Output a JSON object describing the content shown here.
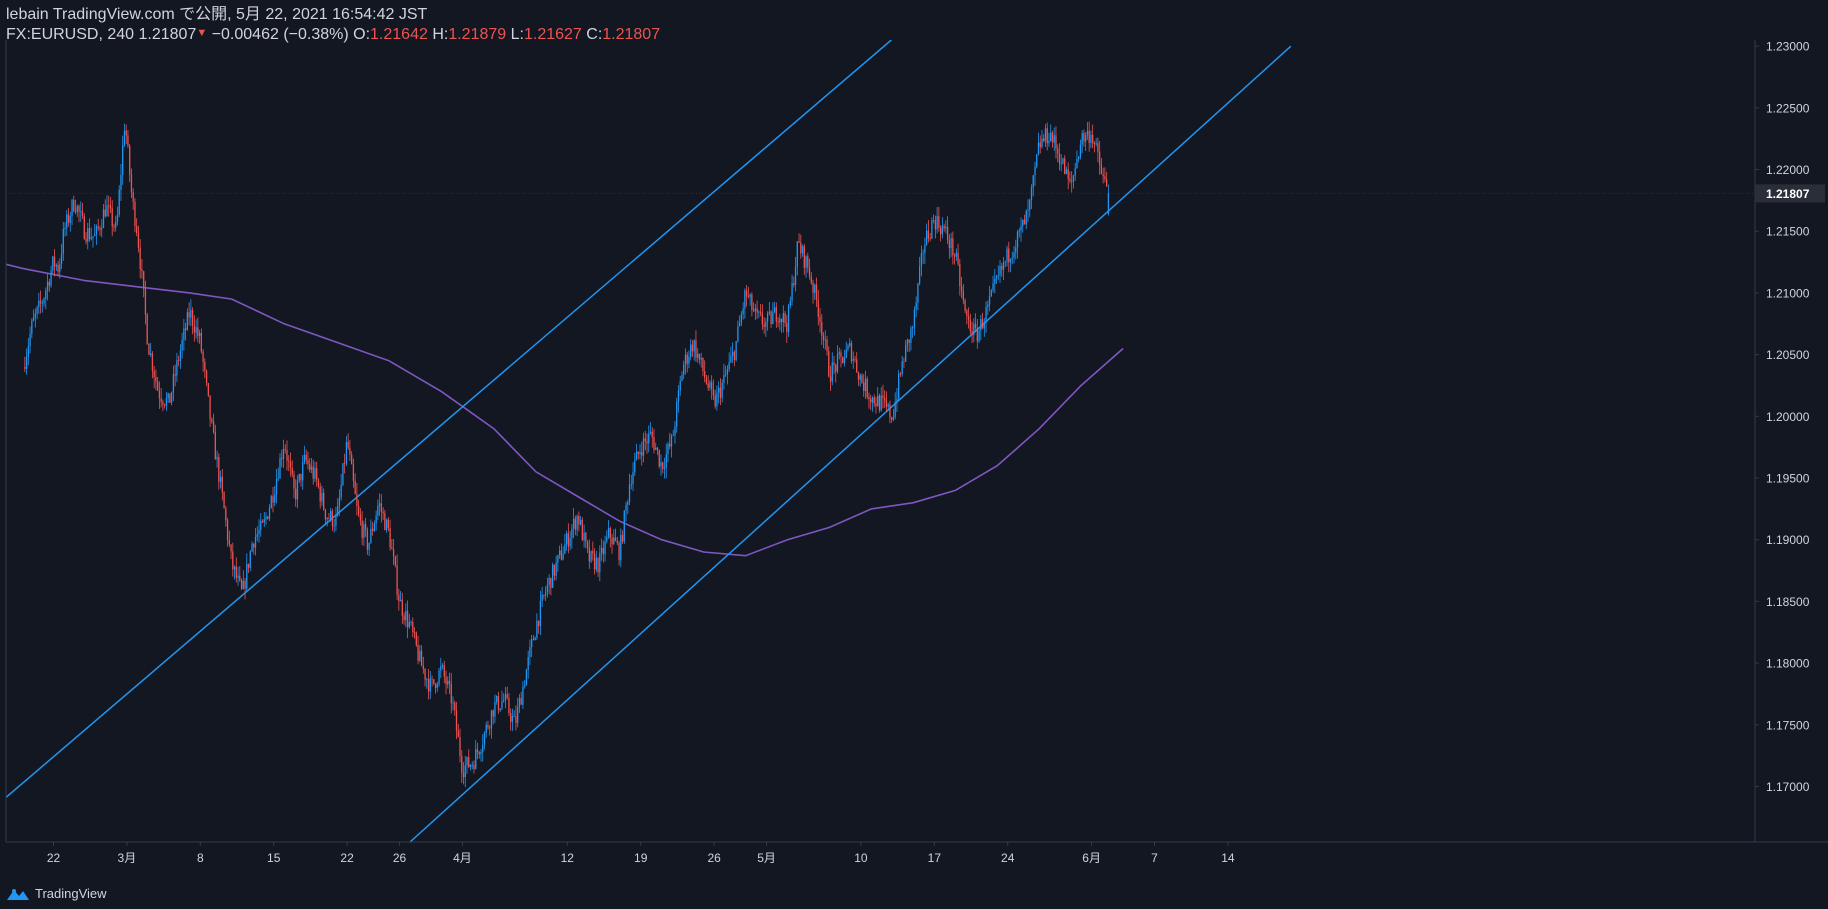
{
  "header": {
    "line1": "lebain TradingView.com で公開, 5月 22, 2021 16:54:42 JST",
    "symbol": "FX:EURUSD, 240",
    "last": "1.21807",
    "change": "−0.00462 (−0.38%)",
    "o_label": "O:",
    "o_val": "1.21642",
    "h_label": "H:",
    "h_val": "1.21879",
    "l_label": "L:",
    "l_val": "1.21627",
    "c_label": "C:",
    "c_val": "1.21807"
  },
  "footer": {
    "brand": "TradingView"
  },
  "colors": {
    "background": "#131722",
    "up": "#2196f3",
    "down": "#ef5350",
    "channel": "#2196f3",
    "ma": "#7e57c2",
    "axis": "#363a45",
    "text": "#d1d4dc"
  },
  "chart_data": {
    "type": "candlestick",
    "symbol": "FX:EURUSD",
    "timeframe": "240",
    "ylim": [
      1.1655,
      1.2305
    ],
    "y_ticks": [
      "1.23000",
      "1.22500",
      "1.22000",
      "1.21500",
      "1.21000",
      "1.20500",
      "1.20000",
      "1.19500",
      "1.19000",
      "1.18500",
      "1.18000",
      "1.17500",
      "1.17000"
    ],
    "x_ticks": [
      {
        "label": "22",
        "day": 0
      },
      {
        "label": "3月",
        "day": 7
      },
      {
        "label": "8",
        "day": 14
      },
      {
        "label": "15",
        "day": 21
      },
      {
        "label": "22",
        "day": 28
      },
      {
        "label": "26",
        "day": 33
      },
      {
        "label": "4月",
        "day": 39
      },
      {
        "label": "12",
        "day": 49
      },
      {
        "label": "19",
        "day": 56
      },
      {
        "label": "26",
        "day": 63
      },
      {
        "label": "5月",
        "day": 68
      },
      {
        "label": "10",
        "day": 77
      },
      {
        "label": "17",
        "day": 84
      },
      {
        "label": "24",
        "day": 91
      },
      {
        "label": "6月",
        "day": 99
      },
      {
        "label": "7",
        "day": 105
      },
      {
        "label": "14",
        "day": 112
      }
    ],
    "last_price_label": "1.21807",
    "candles": {
      "close_path": [
        [
          -2.9,
          1.204
        ],
        [
          -2.0,
          1.2075
        ],
        [
          -1.0,
          1.2095
        ],
        [
          0.0,
          1.2125
        ],
        [
          0.5,
          1.212
        ],
        [
          1.0,
          1.215
        ],
        [
          2.0,
          1.2175
        ],
        [
          3.0,
          1.215
        ],
        [
          4.0,
          1.2145
        ],
        [
          5.0,
          1.217
        ],
        [
          6.0,
          1.215
        ],
        [
          6.8,
          1.224
        ],
        [
          7.5,
          1.2175
        ],
        [
          8.0,
          1.215
        ],
        [
          9.0,
          1.206
        ],
        [
          10.0,
          1.202
        ],
        [
          11.0,
          1.201
        ],
        [
          12.0,
          1.205
        ],
        [
          13.0,
          1.2085
        ],
        [
          14.0,
          1.206
        ],
        [
          15.0,
          1.1995
        ],
        [
          16.0,
          1.194
        ],
        [
          17.0,
          1.188
        ],
        [
          18.0,
          1.1855
        ],
        [
          19.0,
          1.19
        ],
        [
          20.0,
          1.191
        ],
        [
          21.0,
          1.194
        ],
        [
          22.0,
          1.198
        ],
        [
          23.0,
          1.1935
        ],
        [
          24.0,
          1.1965
        ],
        [
          25.0,
          1.195
        ],
        [
          26.0,
          1.192
        ],
        [
          27.0,
          1.1915
        ],
        [
          28.0,
          1.198
        ],
        [
          29.0,
          1.192
        ],
        [
          30.0,
          1.1895
        ],
        [
          31.0,
          1.193
        ],
        [
          32.0,
          1.1905
        ],
        [
          33.0,
          1.185
        ],
        [
          34.0,
          1.183
        ],
        [
          35.0,
          1.18
        ],
        [
          36.0,
          1.178
        ],
        [
          37.0,
          1.1795
        ],
        [
          38.0,
          1.177
        ],
        [
          39.0,
          1.1715
        ],
        [
          40.0,
          1.172
        ],
        [
          41.0,
          1.174
        ],
        [
          42.0,
          1.1765
        ],
        [
          43.0,
          1.177
        ],
        [
          44.0,
          1.175
        ],
        [
          45.0,
          1.179
        ],
        [
          46.0,
          1.183
        ],
        [
          47.0,
          1.186
        ],
        [
          48.0,
          1.188
        ],
        [
          49.0,
          1.19
        ],
        [
          50.0,
          1.192
        ],
        [
          51.0,
          1.1885
        ],
        [
          52.0,
          1.188
        ],
        [
          53.0,
          1.1905
        ],
        [
          54.0,
          1.189
        ],
        [
          55.0,
          1.195
        ],
        [
          56.0,
          1.1975
        ],
        [
          57.0,
          1.1985
        ],
        [
          58.0,
          1.196
        ],
        [
          59.0,
          1.198
        ],
        [
          60.0,
          1.204
        ],
        [
          61.0,
          1.206
        ],
        [
          62.0,
          1.2035
        ],
        [
          63.0,
          1.201
        ],
        [
          64.0,
          1.203
        ],
        [
          65.0,
          1.2055
        ],
        [
          66.0,
          1.21
        ],
        [
          67.0,
          1.208
        ],
        [
          68.0,
          1.2075
        ],
        [
          69.0,
          1.2085
        ],
        [
          70.0,
          1.2075
        ],
        [
          71.0,
          1.214
        ],
        [
          72.0,
          1.212
        ],
        [
          73.0,
          1.2085
        ],
        [
          74.0,
          1.2035
        ],
        [
          75.0,
          1.2045
        ],
        [
          76.0,
          1.2055
        ],
        [
          77.0,
          1.203
        ],
        [
          78.0,
          1.2015
        ],
        [
          79.0,
          1.201
        ],
        [
          80.0,
          1.2
        ],
        [
          81.0,
          1.2045
        ],
        [
          82.0,
          1.2075
        ],
        [
          83.0,
          1.214
        ],
        [
          84.0,
          1.216
        ],
        [
          85.0,
          1.215
        ],
        [
          86.0,
          1.213
        ],
        [
          87.0,
          1.208
        ],
        [
          88.0,
          1.2065
        ],
        [
          89.0,
          1.2085
        ],
        [
          90.0,
          1.211
        ],
        [
          91.0,
          1.213
        ],
        [
          92.0,
          1.2145
        ],
        [
          93.0,
          1.2165
        ],
        [
          94.0,
          1.222
        ],
        [
          95.0,
          1.223
        ],
        [
          96.0,
          1.221
        ],
        [
          97.0,
          1.2185
        ],
        [
          98.0,
          1.2225
        ],
        [
          99.0,
          1.223
        ],
        [
          100.0,
          1.2195
        ],
        [
          100.6,
          1.21807
        ]
      ],
      "last": {
        "open": 1.21642,
        "high": 1.21879,
        "low": 1.21627,
        "close": 1.21807
      }
    },
    "channel_lines": [
      {
        "name": "",
        "points": [
          [
            -9.5,
            1.1655
          ],
          [
            79.9,
            1.2305
          ]
        ]
      },
      {
        "name": "",
        "points": [
          [
            34.0,
            1.1655
          ],
          [
            118.0,
            1.23
          ]
        ]
      }
    ],
    "moving_average": {
      "name": "",
      "points": [
        [
          -10,
          1.2135
        ],
        [
          -3,
          1.212
        ],
        [
          3,
          1.211
        ],
        [
          8,
          1.2105
        ],
        [
          13,
          1.21
        ],
        [
          17,
          1.2095
        ],
        [
          22,
          1.2075
        ],
        [
          27,
          1.206
        ],
        [
          32,
          1.2045
        ],
        [
          37,
          1.202
        ],
        [
          42,
          1.199
        ],
        [
          46,
          1.1955
        ],
        [
          50,
          1.1935
        ],
        [
          54,
          1.1915
        ],
        [
          58,
          1.19
        ],
        [
          62,
          1.189
        ],
        [
          66,
          1.1887
        ],
        [
          70,
          1.19
        ],
        [
          74,
          1.191
        ],
        [
          78,
          1.1925
        ],
        [
          82,
          1.193
        ],
        [
          86,
          1.194
        ],
        [
          90,
          1.196
        ],
        [
          94,
          1.199
        ],
        [
          98,
          1.2025
        ],
        [
          102,
          1.2055
        ]
      ]
    }
  }
}
